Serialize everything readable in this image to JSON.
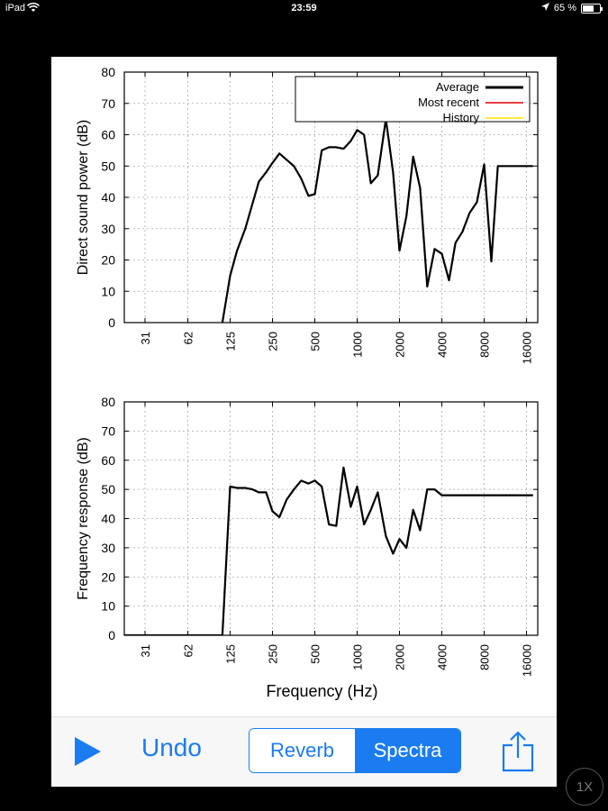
{
  "status_bar": {
    "device": "iPad",
    "time": "23:59",
    "battery": "65 %",
    "battery_level": 0.65
  },
  "colors": {
    "accent": "#1a7cf0",
    "average": "#000000",
    "most_recent": "#e00000",
    "history": "#ffe000"
  },
  "chart_data": [
    {
      "type": "line",
      "ylabel": "Direct sound power (dB)",
      "xlabel": "",
      "x_scale": "log",
      "x_tick_labels": [
        "31",
        "62",
        "125",
        "250",
        "500",
        "1000",
        "2000",
        "4000",
        "8000",
        "16000"
      ],
      "ylim": [
        0,
        80
      ],
      "y_ticks": [
        0,
        10,
        20,
        30,
        40,
        50,
        60,
        70,
        80
      ],
      "grid": true,
      "legend_position": "top-right",
      "legend": [
        "Average",
        "Most recent",
        "History"
      ],
      "series": [
        {
          "name": "Average",
          "x": [
            110,
            125,
            140,
            160,
            180,
            200,
            225,
            250,
            280,
            315,
            355,
            400,
            450,
            500,
            560,
            630,
            710,
            800,
            900,
            1000,
            1120,
            1250,
            1400,
            1600,
            1800,
            2000,
            2240,
            2500,
            2800,
            3150,
            3550,
            4000,
            4500,
            5000,
            5600,
            6300,
            7100,
            8000,
            9000,
            10000,
            11200,
            12500,
            14000,
            16000,
            17800
          ],
          "values": [
            0,
            15,
            23,
            30,
            38,
            45,
            48,
            51,
            54,
            52,
            50,
            46,
            40.5,
            41,
            55,
            56,
            56,
            55.5,
            58,
            61.5,
            60,
            44.5,
            47,
            65,
            48,
            23,
            34,
            53,
            43,
            11.5,
            23.5,
            22,
            13.5,
            25.5,
            29,
            35,
            38.5,
            50.5,
            19.5,
            50,
            50,
            50,
            50,
            50,
            50
          ]
        }
      ]
    },
    {
      "type": "line",
      "ylabel": "Frequency response (dB)",
      "xlabel": "Frequency (Hz)",
      "x_scale": "log",
      "x_tick_labels": [
        "31",
        "62",
        "125",
        "250",
        "500",
        "1000",
        "2000",
        "4000",
        "8000",
        "16000"
      ],
      "ylim": [
        0,
        80
      ],
      "y_ticks": [
        0,
        10,
        20,
        30,
        40,
        50,
        60,
        70,
        80
      ],
      "grid": true,
      "series": [
        {
          "name": "Average",
          "x": [
            20,
            110,
            125,
            140,
            160,
            180,
            200,
            225,
            250,
            280,
            315,
            355,
            400,
            450,
            500,
            560,
            630,
            710,
            800,
            900,
            1000,
            1120,
            1250,
            1400,
            1600,
            1800,
            2000,
            2240,
            2500,
            2800,
            3150,
            3550,
            4000,
            4500,
            5000,
            5600,
            6300,
            7100,
            8000,
            9000,
            10000,
            11200,
            12500,
            14000,
            16000,
            17800
          ],
          "values": [
            0,
            0,
            51,
            50.5,
            50.5,
            50,
            49,
            49,
            42.5,
            40.5,
            46.5,
            50,
            53,
            52,
            53,
            51,
            38,
            37.5,
            57.5,
            44,
            51,
            38,
            43,
            49,
            34,
            28,
            33,
            30,
            43,
            36,
            50,
            50,
            48,
            48,
            48,
            48,
            48,
            48,
            48,
            48,
            48,
            48,
            48,
            48,
            48,
            48
          ]
        }
      ]
    }
  ],
  "toolbar": {
    "undo_label": "Undo",
    "reverb_label": "Reverb",
    "spectra_label": "Spectra",
    "selected_segment": "Spectra"
  },
  "zoom_label": "1X"
}
